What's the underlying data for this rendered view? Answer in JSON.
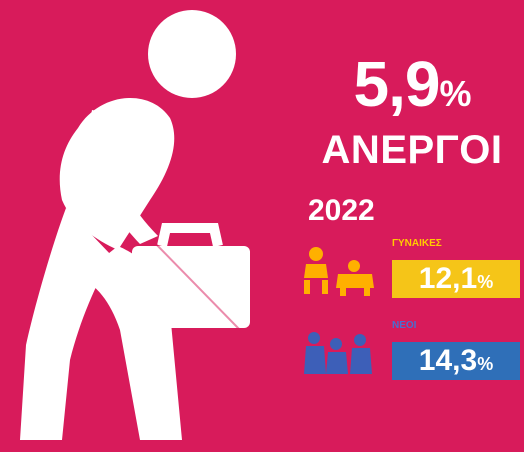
{
  "headline": {
    "rate": "5,9",
    "rate_suffix": "%",
    "label": "ΑΝΕΡΓΟΙ",
    "year": "2022"
  },
  "groups": [
    {
      "category": "ΓΥΝΑΙΚΕΣ",
      "value": "12,1",
      "suffix": "%",
      "color": "#f5c518",
      "icon": "mother-child-icon"
    },
    {
      "category": "ΝΕΟΙ",
      "value": "14,3",
      "suffix": "%",
      "color": "#2f6fb8",
      "icon": "young-people-icon"
    }
  ],
  "colors": {
    "background": "#d81b5b",
    "figure": "#ffffff"
  }
}
